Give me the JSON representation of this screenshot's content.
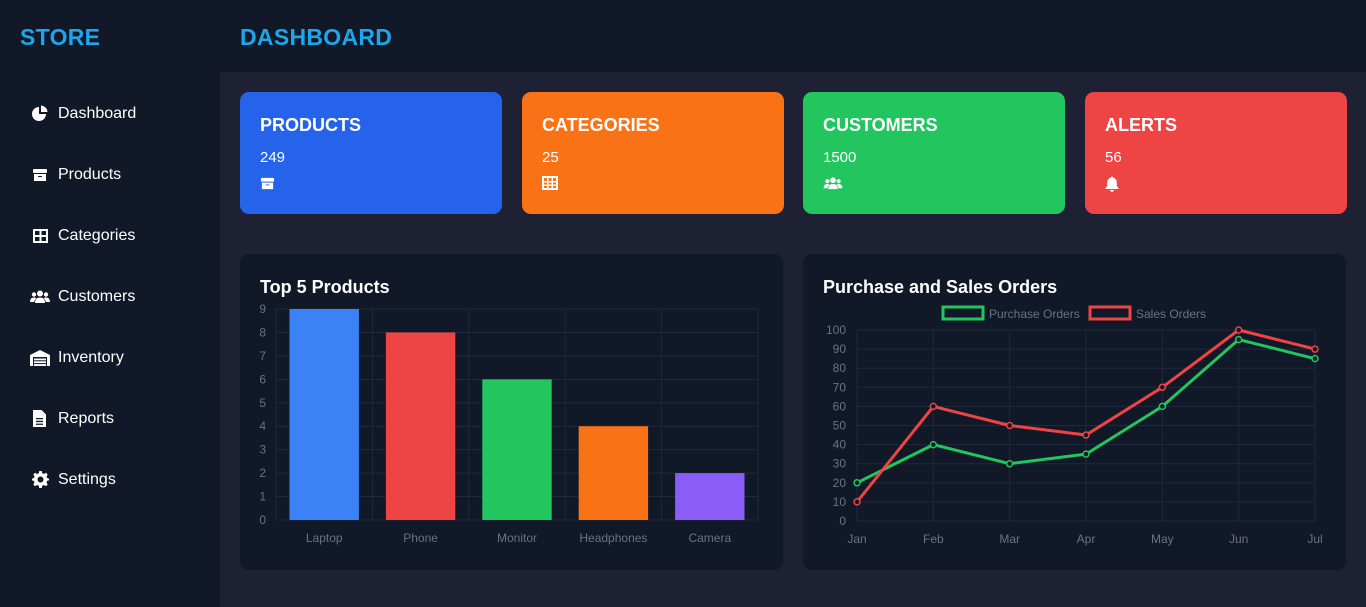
{
  "sidebar": {
    "brand": "STORE",
    "items": [
      {
        "label": "Dashboard",
        "icon": "pie-chart-icon"
      },
      {
        "label": "Products",
        "icon": "box-icon"
      },
      {
        "label": "Categories",
        "icon": "grid-icon"
      },
      {
        "label": "Customers",
        "icon": "users-icon"
      },
      {
        "label": "Inventory",
        "icon": "warehouse-icon"
      },
      {
        "label": "Reports",
        "icon": "file-icon"
      },
      {
        "label": "Settings",
        "icon": "gear-icon"
      }
    ]
  },
  "header": {
    "title": "DASHBOARD"
  },
  "cards": [
    {
      "title": "PRODUCTS",
      "value": "249",
      "icon": "box-icon",
      "color": "#2563eb"
    },
    {
      "title": "CATEGORIES",
      "value": "25",
      "icon": "table-icon",
      "color": "#f97316"
    },
    {
      "title": "CUSTOMERS",
      "value": "1500",
      "icon": "users-icon",
      "color": "#22c55e"
    },
    {
      "title": "ALERTS",
      "value": "56",
      "icon": "bell-icon",
      "color": "#ef4444"
    }
  ],
  "chart_data": [
    {
      "type": "bar",
      "title": "Top 5 Products",
      "categories": [
        "Laptop",
        "Phone",
        "Monitor",
        "Headphones",
        "Camera"
      ],
      "values": [
        9,
        8,
        6,
        4,
        2
      ],
      "colors": [
        "#3b82f6",
        "#ef4444",
        "#22c55e",
        "#f97316",
        "#8b5cf6"
      ],
      "yticks": [
        "0",
        "1",
        "2",
        "3",
        "4",
        "5",
        "6",
        "7",
        "8",
        "9"
      ],
      "ylim": [
        0,
        9
      ],
      "grid": true
    },
    {
      "type": "line",
      "title": "Purchase and Sales Orders",
      "x": [
        "Jan",
        "Feb",
        "Mar",
        "Apr",
        "May",
        "Jun",
        "Jul"
      ],
      "yticks": [
        "0",
        "10",
        "20",
        "30",
        "40",
        "50",
        "60",
        "70",
        "80",
        "90",
        "100"
      ],
      "ylim": [
        0,
        100
      ],
      "legend": "top-center",
      "grid": true,
      "series": [
        {
          "name": "Purchase Orders",
          "values": [
            20,
            40,
            30,
            35,
            60,
            95,
            85
          ],
          "color": "#22c55e"
        },
        {
          "name": "Sales Orders",
          "values": [
            10,
            60,
            50,
            45,
            70,
            100,
            90
          ],
          "color": "#ef4444"
        }
      ]
    }
  ]
}
